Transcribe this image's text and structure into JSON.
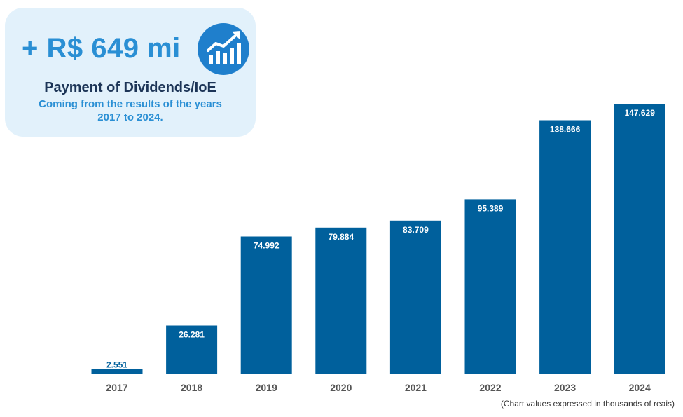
{
  "summary": {
    "headline": "+ R$ 649 mi",
    "title": "Payment of Dividends/IoE",
    "subtitle_line1": "Coming from the results of the years",
    "subtitle_line2": "2017 to 2024.",
    "icon": "growth-chart-icon"
  },
  "colors": {
    "bar": "#00609c",
    "accent": "#2a8fd4",
    "card_background": "#e2f1fb",
    "icon_background": "#1f7fcc",
    "title": "#1d3557"
  },
  "chart_data": {
    "type": "bar",
    "categories": [
      "2017",
      "2018",
      "2019",
      "2020",
      "2021",
      "2022",
      "2023",
      "2024"
    ],
    "values": [
      2551,
      26281,
      74992,
      79884,
      83709,
      95389,
      138666,
      147629
    ],
    "value_labels": [
      "2.551",
      "26.281",
      "74.992",
      "79.884",
      "83.709",
      "95.389",
      "138.666",
      "147.629"
    ],
    "ylim": [
      0,
      150000
    ],
    "grid": false,
    "legend": "none",
    "unit_note": "(Chart values expressed in thousands of reais)"
  }
}
